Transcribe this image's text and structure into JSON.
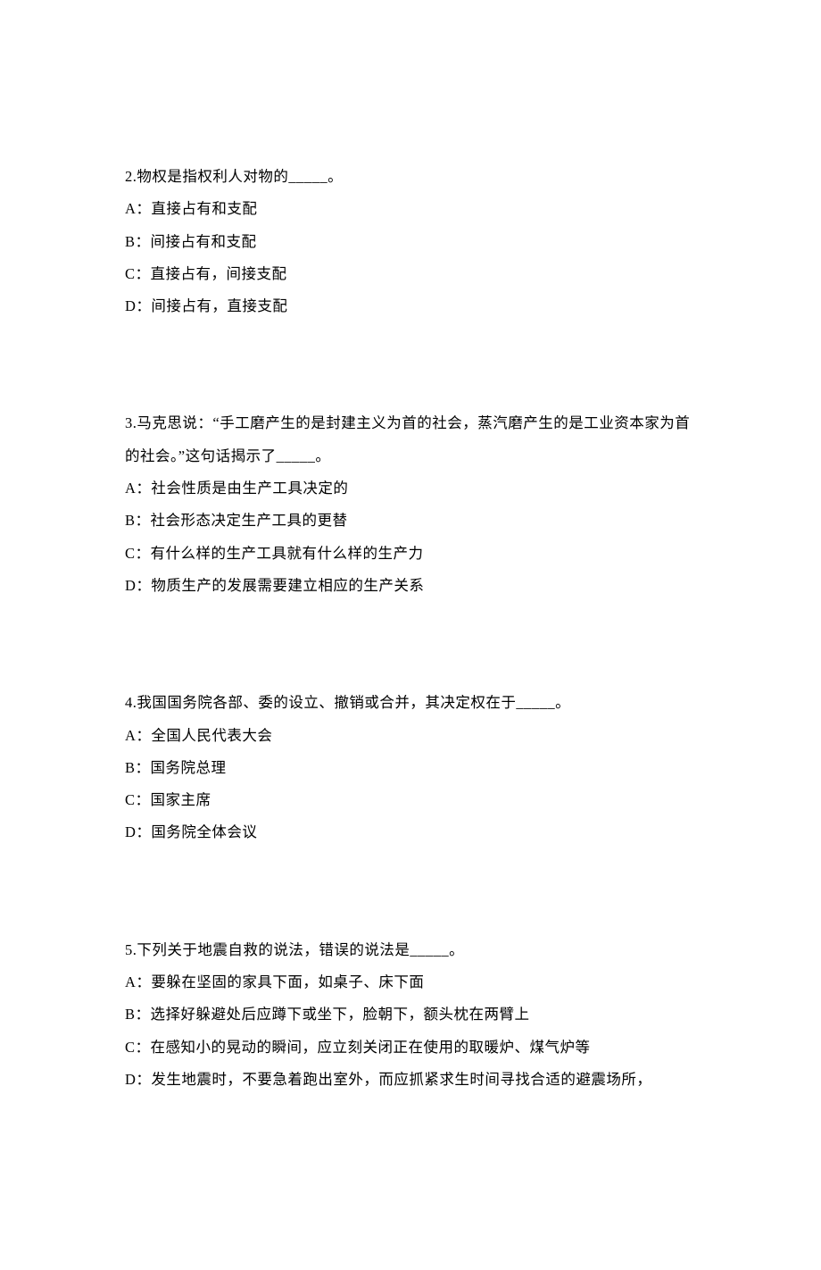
{
  "page": {
    "background_color": "#ffffff",
    "text_color": "#000000",
    "font_family": "SimSun",
    "font_size_pt": 12,
    "line_height": 2.2
  },
  "questions": [
    {
      "number": "2",
      "stem": "2.物权是指权利人对物的_____。",
      "options": [
        "A：直接占有和支配",
        "B：间接占有和支配",
        "C：直接占有，间接支配",
        "D：间接占有，直接支配"
      ]
    },
    {
      "number": "3",
      "stem": "3.马克思说：“手工磨产生的是封建主义为首的社会，蒸汽磨产生的是工业资本家为首的社会。”这句话揭示了_____。",
      "options": [
        "A：社会性质是由生产工具决定的",
        "B：社会形态决定生产工具的更替",
        "C：有什么样的生产工具就有什么样的生产力",
        "D：物质生产的发展需要建立相应的生产关系"
      ]
    },
    {
      "number": "4",
      "stem": "4.我国国务院各部、委的设立、撤销或合并，其决定权在于_____。",
      "options": [
        "A：全国人民代表大会",
        "B：国务院总理",
        "C：国家主席",
        "D：国务院全体会议"
      ]
    },
    {
      "number": "5",
      "stem": "5.下列关于地震自救的说法，错误的说法是_____。",
      "options": [
        "A：要躲在坚固的家具下面，如桌子、床下面",
        "B：选择好躲避处后应蹲下或坐下，脸朝下，额头枕在两臂上",
        "C：在感知小的晃动的瞬间，应立刻关闭正在使用的取暖炉、煤气炉等",
        "D：发生地震时，不要急着跑出室外，而应抓紧求生时间寻找合适的避震场所，"
      ]
    }
  ]
}
